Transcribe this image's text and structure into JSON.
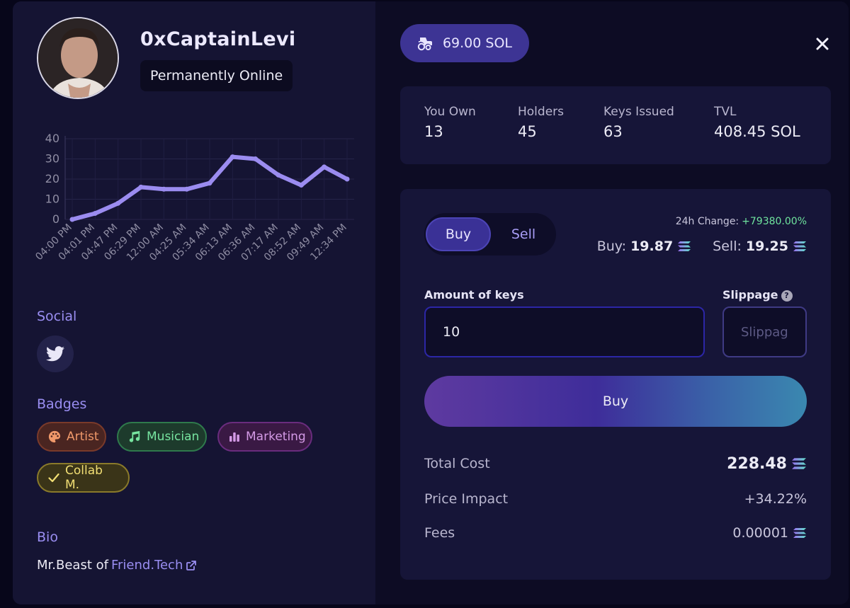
{
  "profile": {
    "username": "0xCaptainLevi",
    "status": "Permanently Online"
  },
  "chart_data": {
    "type": "line",
    "x": [
      "04:00 PM",
      "04:01 PM",
      "04:47 PM",
      "06:29 PM",
      "12:00 AM",
      "04:25 AM",
      "05:34 AM",
      "06:13 AM",
      "06:36 AM",
      "07:17 AM",
      "08:52 AM",
      "09:49 AM",
      "12:34 PM"
    ],
    "series": [
      {
        "values": [
          0,
          3,
          8,
          16,
          15,
          15,
          18,
          31,
          30,
          22,
          17,
          26,
          20
        ]
      }
    ],
    "ylim": [
      0,
      40
    ],
    "yticks": [
      "0",
      "10",
      "20",
      "30",
      "40"
    ],
    "grid": true,
    "line_color": "#9b8cf0"
  },
  "sections": {
    "social": "Social",
    "badges": "Badges",
    "bio": "Bio"
  },
  "badges": [
    {
      "label": "Artist",
      "icon": "palette-icon"
    },
    {
      "label": "Musician",
      "icon": "music-note-icon"
    },
    {
      "label": "Marketing",
      "icon": "bar-chart-icon"
    },
    {
      "label": "Collab M.",
      "icon": "check-icon"
    }
  ],
  "bio": {
    "prefix": "Mr.Beast of",
    "link_text": "Friend.Tech"
  },
  "price_pill": {
    "label": "69.00 SOL",
    "icon": "tractor-icon"
  },
  "stats": {
    "you_own": {
      "label": "You Own",
      "value": "13"
    },
    "holders": {
      "label": "Holders",
      "value": "45"
    },
    "keys_issued": {
      "label": "Keys Issued",
      "value": "63"
    },
    "tvl": {
      "label": "TVL",
      "value": "408.45 SOL"
    }
  },
  "trade": {
    "tab_buy": "Buy",
    "tab_sell": "Sell",
    "change_label": "24h Change:",
    "change_value": "+79380.00%",
    "buy_price_label": "Buy:",
    "buy_price": "19.87",
    "sell_price_label": "Sell:",
    "sell_price": "19.25",
    "amount_label": "Amount of keys",
    "amount_value": "10",
    "slippage_label": "Slippage",
    "slippage_placeholder": "Slippage",
    "action_label": "Buy",
    "total_cost_label": "Total Cost",
    "total_cost": "228.48",
    "price_impact_label": "Price Impact",
    "price_impact": "+34.22%",
    "fees_label": "Fees",
    "fees": "0.00001"
  },
  "colors": {
    "accent": "#9a8ef2",
    "positive": "#6fe49e"
  }
}
